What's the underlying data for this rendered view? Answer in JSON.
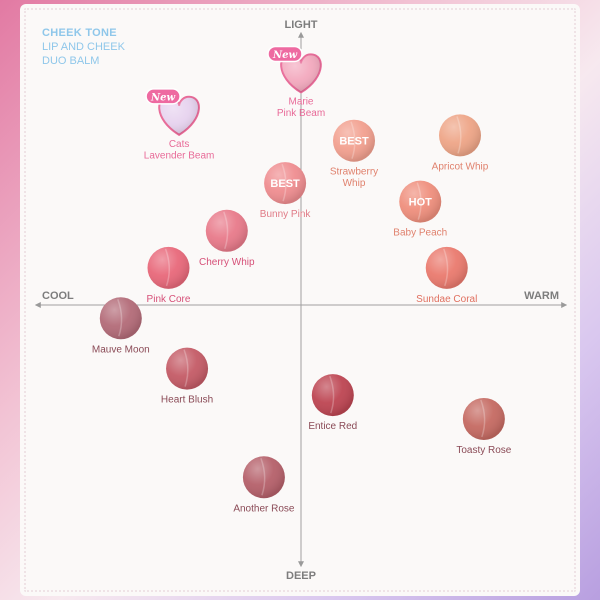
{
  "brand": {
    "line1": "CHEEK TONE",
    "line2": "LIP AND CHEEK",
    "line3": "DUO BALM"
  },
  "colors": {
    "title_blue": "#8fc7ea",
    "axis": "#9a9a9a",
    "label_pink": "#e05d8a",
    "label_dark": "#8a4a56",
    "label_coral": "#e0826e"
  },
  "chart_data": {
    "type": "scatter",
    "title": "",
    "xlabel": "",
    "ylabel": "",
    "axes": {
      "left": "COOL",
      "right": "WARM",
      "top": "LIGHT",
      "bottom": "DEEP"
    },
    "xlim": [
      -10,
      10
    ],
    "ylim": [
      -10,
      10
    ],
    "grid": false,
    "points": [
      {
        "name": "Marie\nPink Beam",
        "x": 0.0,
        "y": 8.7,
        "color": "#f3a9be",
        "badge": "New",
        "shape": "heart",
        "label_color": "#e86a98"
      },
      {
        "name": "Cats\nLavender Beam",
        "x": -4.6,
        "y": 7.1,
        "color": "#e7d3ef",
        "badge": "New",
        "shape": "heart",
        "label_color": "#e86a98"
      },
      {
        "name": "Strawberry\nWhip",
        "x": 2.0,
        "y": 6.2,
        "color": "#f2a08f",
        "badge": "BEST",
        "shape": "circle",
        "label_color": "#e0826e"
      },
      {
        "name": "Apricot Whip",
        "x": 6.0,
        "y": 6.4,
        "color": "#eea587",
        "badge": "",
        "shape": "circle",
        "label_color": "#e0826e"
      },
      {
        "name": "Bunny Pink",
        "x": -0.6,
        "y": 4.6,
        "color": "#ef8d90",
        "badge": "BEST",
        "shape": "circle",
        "label_color": "#e07a86"
      },
      {
        "name": "Baby Peach",
        "x": 4.5,
        "y": 3.9,
        "color": "#ef8f7d",
        "badge": "HOT",
        "shape": "circle",
        "label_color": "#e0826e"
      },
      {
        "name": "Cherry Whip",
        "x": -2.8,
        "y": 2.8,
        "color": "#e87a8a",
        "badge": "",
        "shape": "circle",
        "label_color": "#d65078"
      },
      {
        "name": "Sundae Coral",
        "x": 5.5,
        "y": 1.4,
        "color": "#ea7a6e",
        "badge": "",
        "shape": "circle",
        "label_color": "#e07060"
      },
      {
        "name": "Pink Core",
        "x": -5.0,
        "y": 1.4,
        "color": "#e8687a",
        "badge": "",
        "shape": "circle",
        "label_color": "#d65078"
      },
      {
        "name": "Mauve Moon",
        "x": -6.8,
        "y": -0.5,
        "color": "#b36b78",
        "badge": "",
        "shape": "circle",
        "label_color": "#8a4a56"
      },
      {
        "name": "Heart Blush",
        "x": -4.3,
        "y": -2.4,
        "color": "#c45b66",
        "badge": "",
        "shape": "circle",
        "label_color": "#8a4a56"
      },
      {
        "name": "Entice Red",
        "x": 1.2,
        "y": -3.4,
        "color": "#bd4552",
        "badge": "",
        "shape": "circle",
        "label_color": "#8a4a56"
      },
      {
        "name": "Toasty Rose",
        "x": 6.9,
        "y": -4.3,
        "color": "#c56a62",
        "badge": "",
        "shape": "circle",
        "label_color": "#8a4a56"
      },
      {
        "name": "Another Rose",
        "x": -1.4,
        "y": -6.5,
        "color": "#b5606a",
        "badge": "",
        "shape": "circle",
        "label_color": "#8a4a56"
      }
    ]
  }
}
